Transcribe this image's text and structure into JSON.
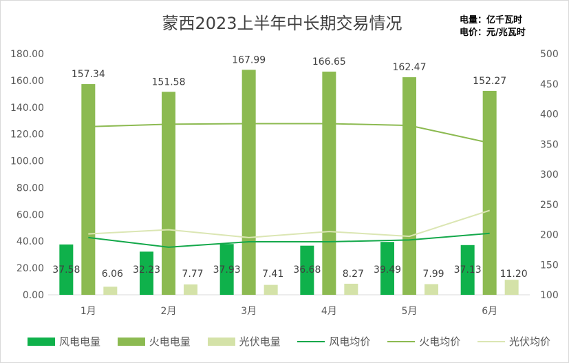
{
  "title": "蒙西2023上半年中长期交易情况",
  "units": {
    "line1": "电量：亿千瓦时",
    "line2": "电价：元/兆瓦时"
  },
  "chart_data": {
    "type": "bar",
    "categories": [
      "1月",
      "2月",
      "3月",
      "4月",
      "5月",
      "6月"
    ],
    "series": [
      {
        "name": "风电电量",
        "kind": "bar",
        "axis": "left",
        "color": "#0fb14b",
        "values": [
          37.58,
          32.23,
          37.93,
          36.68,
          39.49,
          37.13
        ],
        "labels": [
          "37.58",
          "32.23",
          "37.93",
          "36.68",
          "39.49",
          "37.13"
        ]
      },
      {
        "name": "火电电量",
        "kind": "bar",
        "axis": "left",
        "color": "#8cba51",
        "values": [
          157.34,
          151.58,
          167.99,
          166.65,
          162.47,
          152.27
        ],
        "labels": [
          "157.34",
          "151.58",
          "167.99",
          "166.65",
          "162.47",
          "152.27"
        ]
      },
      {
        "name": "光伏电量",
        "kind": "bar",
        "axis": "left",
        "color": "#d4e2a8",
        "values": [
          6.06,
          7.77,
          7.41,
          8.27,
          7.99,
          11.2
        ],
        "labels": [
          "6.06",
          "7.77",
          "7.41",
          "8.27",
          "7.99",
          "11.20"
        ]
      },
      {
        "name": "风电均价",
        "kind": "line",
        "axis": "right",
        "color": "#13a84a",
        "values": [
          195,
          179,
          188,
          188,
          191,
          202
        ]
      },
      {
        "name": "火电均价",
        "kind": "line",
        "axis": "right",
        "color": "#8cba51",
        "values": [
          379,
          383,
          384,
          384,
          381,
          352
        ]
      },
      {
        "name": "光伏均价",
        "kind": "line",
        "axis": "right",
        "color": "#dbe6b3",
        "values": [
          201,
          208,
          195,
          205,
          197,
          240
        ]
      }
    ],
    "y_left": {
      "min": 0,
      "max": 180,
      "ticks": [
        "0.00",
        "20.00",
        "40.00",
        "60.00",
        "80.00",
        "100.00",
        "120.00",
        "140.00",
        "160.00",
        "180.00"
      ]
    },
    "y_right": {
      "min": 100,
      "max": 500,
      "ticks": [
        "100",
        "150",
        "200",
        "250",
        "300",
        "350",
        "400",
        "450",
        "500"
      ]
    },
    "grid": false,
    "legend_position": "bottom"
  }
}
